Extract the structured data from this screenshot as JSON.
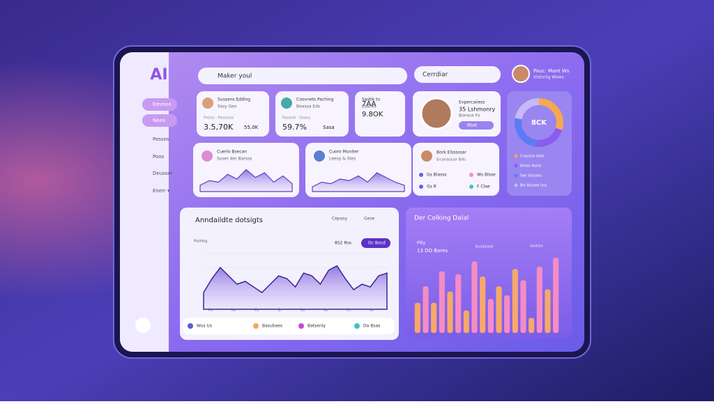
{
  "sidebar": {
    "logo": "AI",
    "nav": [
      "Emmon",
      "Neea",
      "Pesses",
      "Poos",
      "Deusser",
      "Enerr ▾"
    ]
  },
  "header": {
    "search": "Maker youl",
    "search2": "Cerrdiar",
    "profile": "Pauc: Mant Ws",
    "profile_sub": "Vistorlig Waws"
  },
  "stat_cards": [
    {
      "title": "Sussans Edding",
      "subtitle": "Sssy Geo",
      "footer": "Presss · Pessasse",
      "value": "3.5,70K",
      "value2": "55,0K"
    },
    {
      "title": "Coovnets Paching",
      "subtitle": "Beassa Eds",
      "footer": "Possnet · Disass",
      "value": "59.7%",
      "value2": "Sasa"
    },
    {
      "title": "Sastik to",
      "subtitle": "Essnes",
      "footer": "",
      "value": "7AA",
      "value2": "9.8OK"
    }
  ],
  "profile_card": {
    "title": "Evpercaiiess",
    "value": "35 Lshmonry",
    "subtitle": "Bonsce Fs",
    "button": "Bbat"
  },
  "donut": {
    "center": "8CK",
    "values": [
      30,
      22,
      26,
      22
    ],
    "colors": [
      "#f4a94e",
      "#8a5cf0",
      "#5b7cf5",
      "#c9b8f7"
    ],
    "legend": [
      "Cnassna dota",
      "Bimss Hutre",
      "Sae Sassaes",
      "Bts Bssaee Isss"
    ]
  },
  "wave_cards": [
    {
      "title": "Cuerlo Bsecan",
      "subtitle": "Suser der Barsss",
      "values": [
        20,
        35,
        30,
        55,
        40,
        70,
        45,
        60,
        30,
        50,
        25
      ]
    },
    {
      "title": "Cuoro Muniter",
      "subtitle": "Leesy & Sles",
      "values": [
        15,
        30,
        25,
        40,
        35,
        50,
        30,
        60,
        45,
        30,
        20
      ]
    }
  ],
  "list_card": {
    "title": "Bork Elsssssar",
    "subtitle": "Ercanasssor Bills",
    "rows": [
      "Gs Blasss",
      "Ws Blsse",
      "Gs R",
      "F Clae"
    ]
  },
  "main_chart": {
    "title": "Anndaildte dotsigts",
    "tabs": [
      "Cepasy",
      "Gese"
    ],
    "ylabel": "Poshing",
    "note": "8S2 Ros",
    "button": "Dc Bocd",
    "values": [
      30,
      55,
      75,
      60,
      45,
      50,
      40,
      30,
      45,
      60,
      55,
      40,
      65,
      60,
      45,
      70,
      78,
      55,
      35,
      45,
      40,
      60,
      65
    ],
    "xticks": [
      "Ms",
      "Ns",
      "Ms",
      "Sn",
      "Ns",
      "Ns",
      "Cs",
      "Ns"
    ],
    "legend": [
      "Wus Us",
      "Basubaes",
      "Batsenly",
      "Da Bsas"
    ],
    "legend_colors": [
      "#5b5bd6",
      "#f4a94e",
      "#c04bd9",
      "#3fc2c9"
    ]
  },
  "bar_chart": {
    "title": "Der Colking Dalal",
    "label1": "Pilly",
    "label2": "13 DO Bares",
    "note1": "Busdlosee",
    "note2": "Iasdsse",
    "values": [
      40,
      62,
      40,
      82,
      55,
      78,
      30,
      95,
      75,
      45,
      62,
      50,
      85,
      70,
      20,
      88,
      58,
      100
    ],
    "colors": [
      "#f7a86a",
      "#f58cc4"
    ]
  }
}
